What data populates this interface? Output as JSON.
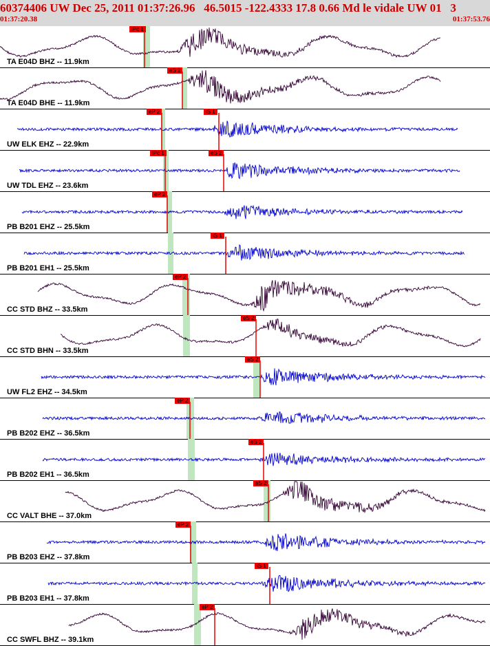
{
  "header": {
    "title": "60374406 UW Dec 25, 2011 01:37:26.96   46.5015 -122.4333 17.8 0.66 Md le vidale UW 01   3",
    "time_start": "01:37:20.38",
    "time_end": "01:37:53.76"
  },
  "colors": {
    "header_bg": "#d8d8d8",
    "header_text": "#cc0000",
    "broadband_trace": "#330033",
    "shortperiod_trace": "#0000cc",
    "pick": "#ee0000",
    "pick_window": "#bfe6bf"
  },
  "traces": [
    {
      "label": "TA E04D BHZ -- 11.9km",
      "type": "broadband",
      "pick": "iPc 1"
    },
    {
      "label": "TA E04D BHE -- 11.9km",
      "type": "broadband",
      "pick": "eS 2"
    },
    {
      "label": "UW ELK EHZ -- 22.9km",
      "type": "shortperiod",
      "pick": "eP 2",
      "pick2": "iS 1"
    },
    {
      "label": "UW TDL EHZ -- 23.6km",
      "type": "shortperiod",
      "pick": "iPc 1",
      "pick2": "eS 2"
    },
    {
      "label": "PB B201 EHZ -- 25.5km",
      "type": "shortperiod",
      "pick": "eP 2"
    },
    {
      "label": "PB B201 EH1 -- 25.5km",
      "type": "shortperiod",
      "pick": "iS 1"
    },
    {
      "label": "CC STD BHZ -- 33.5km",
      "type": "broadband",
      "pick": "eP 2"
    },
    {
      "label": "CC STD BHN -- 33.5km",
      "type": "broadband",
      "pick": "eS 2"
    },
    {
      "label": "UW FL2 EHZ -- 34.5km",
      "type": "shortperiod",
      "pick": "eS 2"
    },
    {
      "label": "PB B202 EHZ -- 36.5km",
      "type": "shortperiod",
      "pick": "eP 2"
    },
    {
      "label": "PB B202 EH1 -- 36.5km",
      "type": "shortperiod",
      "pick": "eS 2"
    },
    {
      "label": "CC VALT BHE -- 37.0km",
      "type": "broadband",
      "pick": "eS 2"
    },
    {
      "label": "PB B203 EHZ -- 37.8km",
      "type": "shortperiod",
      "pick": "eP 2"
    },
    {
      "label": "PB B203 EH1 -- 37.8km",
      "type": "shortperiod",
      "pick": "iS 1"
    },
    {
      "label": "CC SWFL BHZ -- 39.1km",
      "type": "broadband",
      "pick": "eP 2"
    }
  ]
}
